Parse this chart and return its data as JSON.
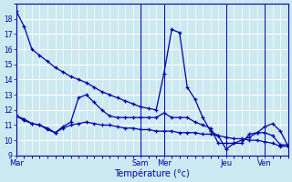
{
  "title": "",
  "xlabel": "Température (°c)",
  "ylabel": "",
  "bg_color": "#cce8f0",
  "grid_color": "#ffffff",
  "line_color": "#0000aa",
  "ylim": [
    9,
    19
  ],
  "yticks": [
    9,
    10,
    11,
    12,
    13,
    14,
    15,
    16,
    17,
    18
  ],
  "x_day_labels": [
    "Mar",
    "Sam",
    "Mer",
    "Jeu",
    "Ven"
  ],
  "x_day_positions": [
    0,
    16,
    19,
    27,
    32
  ],
  "n_points": 36,
  "series": [
    [
      18.5,
      17.5,
      16.0,
      15.6,
      15.2,
      14.8,
      14.5,
      14.2,
      14.0,
      13.8,
      13.5,
      13.2,
      13.0,
      12.8,
      12.6,
      12.4,
      12.2,
      12.1,
      12.0,
      14.4,
      17.3,
      17.1,
      13.5,
      12.7,
      11.5,
      10.6,
      10.3,
      9.4,
      9.8,
      10.0,
      10.2,
      10.5,
      10.9,
      11.1,
      10.6,
      9.6
    ],
    [
      11.6,
      11.3,
      11.1,
      11.0,
      10.7,
      10.5,
      10.9,
      11.2,
      12.8,
      13.0,
      12.5,
      12.0,
      11.6,
      11.5,
      11.5,
      11.5,
      11.5,
      11.5,
      11.5,
      11.8,
      11.5,
      11.5,
      11.5,
      11.2,
      11.0,
      10.8,
      9.8,
      9.8,
      9.8,
      9.8,
      10.4,
      10.5,
      10.5,
      10.3,
      9.7,
      9.7
    ],
    [
      11.6,
      11.4,
      11.1,
      11.0,
      10.8,
      10.5,
      10.8,
      11.0,
      11.1,
      11.2,
      11.1,
      11.0,
      11.0,
      10.9,
      10.8,
      10.8,
      10.7,
      10.7,
      10.6,
      10.6,
      10.6,
      10.5,
      10.5,
      10.5,
      10.4,
      10.4,
      10.3,
      10.2,
      10.1,
      10.1,
      10.0,
      10.0,
      9.9,
      9.8,
      9.6,
      9.6
    ]
  ]
}
